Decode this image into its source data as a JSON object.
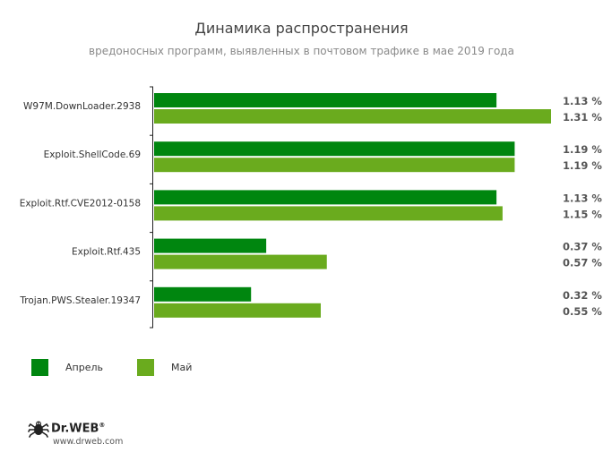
{
  "chart_data": {
    "type": "bar",
    "orientation": "horizontal",
    "title": "Динамика распространения",
    "subtitle": "вредоносных программ, выявленных в почтовом трафике в мае 2019 года",
    "categories": [
      "W97M.DownLoader.2938",
      "Exploit.ShellCode.69",
      "Exploit.Rtf.CVE2012-0158",
      "Exploit.Rtf.435",
      "Trojan.PWS.Stealer.19347"
    ],
    "series": [
      {
        "name": "Апрель",
        "color": "#00860f",
        "values": [
          1.13,
          1.19,
          1.13,
          0.37,
          0.32
        ],
        "labels": [
          "1.13 %",
          "1.19 %",
          "1.13 %",
          "0.37 %",
          "0.32 %"
        ]
      },
      {
        "name": "Май",
        "color": "#6aab1e",
        "values": [
          1.31,
          1.19,
          1.15,
          0.57,
          0.55
        ],
        "labels": [
          "1.31 %",
          "1.19 %",
          "1.15 %",
          "0.57 %",
          "0.55 %"
        ]
      }
    ],
    "xlim": [
      0,
      1.31
    ],
    "grid": false,
    "legend": "bottom-left"
  },
  "branding": {
    "logo_text": "Dr.WEB",
    "registered_mark": "®",
    "url": "www.drweb.com",
    "logo_icon": "spider-icon"
  }
}
